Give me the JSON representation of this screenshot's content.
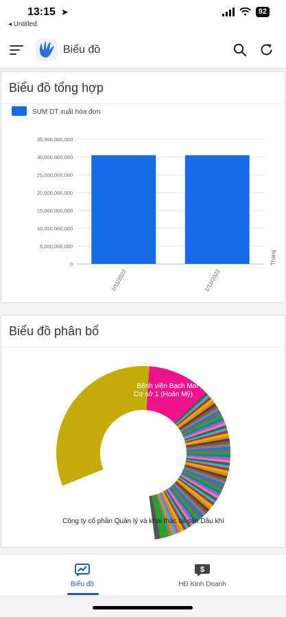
{
  "status_bar": {
    "time": "13:15",
    "back_label": "◂ Untitled",
    "battery": "92"
  },
  "app_bar": {
    "title": "Biểu đồ"
  },
  "colors": {
    "accent": "#1f58b8",
    "bar": "#1a6be8",
    "donut_main": "#c4ac08",
    "donut_pink": "#f0148c"
  },
  "cards": {
    "combined": {
      "title": "Biểu đồ tổng hợp"
    },
    "distribution": {
      "title": "Biểu đồ phân bổ"
    }
  },
  "chart_data": [
    {
      "type": "bar",
      "title": "",
      "legend": [
        "SUM DT xuất hóa đơn"
      ],
      "categories": [
        "1/11/2022",
        "1/12/2022"
      ],
      "values": [
        30500000000,
        30500000000
      ],
      "yticks": [
        "0",
        "5,000,000,000",
        "10,000,000,000",
        "15,000,000,000",
        "20,000,000,000",
        "25,000,000,000",
        "30,000,000,000",
        "35,000,000,000"
      ],
      "ylim": [
        0,
        35000000000
      ],
      "xlabel": "Tháng",
      "ylabel": "",
      "grid": true
    },
    {
      "type": "pie",
      "labels": [
        "Công ty cổ phần Quản lý và khai thác tài sản Dầu khí",
        "Bệnh viện Bạch Mai Cơ sở 1 (Hoàn Mỹ)"
      ],
      "values": [
        74,
        8
      ]
    }
  ],
  "nav": {
    "charts_label": "Biểu đồ",
    "business_label": "HĐ Kinh Doanh"
  }
}
